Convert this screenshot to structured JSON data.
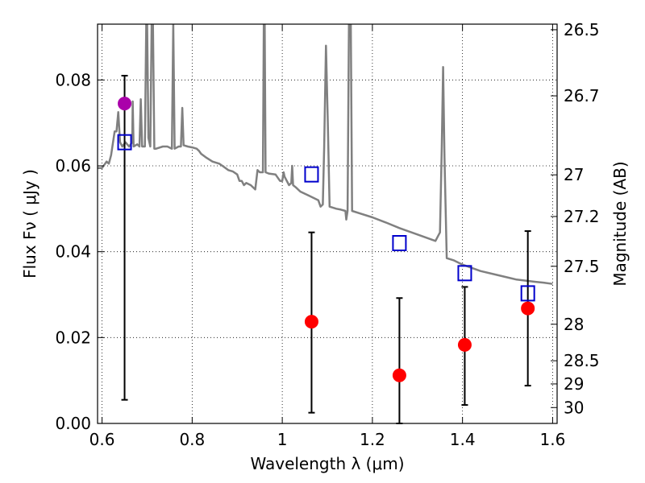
{
  "chart_data": {
    "type": "scatter",
    "xlabel": "Wavelength  λ (μm)",
    "ylabel": "Flux  Fν  ( μJy )",
    "ylabel_right": "Magnitude (AB)",
    "xlim": [
      0.59,
      1.61
    ],
    "ylim": [
      0.0,
      0.093
    ],
    "grid": true,
    "x_ticks": [
      0.6,
      0.8,
      1.0,
      1.2,
      1.4,
      1.6
    ],
    "x_tick_labels": [
      "0.6",
      "0.8",
      "1",
      "1.2",
      "1.4",
      "1.6"
    ],
    "y_ticks": [
      0.0,
      0.02,
      0.04,
      0.06,
      0.08
    ],
    "y_tick_labels": [
      "0.00",
      "0.02",
      "0.04",
      "0.06",
      "0.08"
    ],
    "right_ticks": [
      {
        "label": "26.5",
        "flux": 0.0917
      },
      {
        "label": "26.7",
        "flux": 0.0763
      },
      {
        "label": "27",
        "flux": 0.0579
      },
      {
        "label": "27.2",
        "flux": 0.0482
      },
      {
        "label": "27.5",
        "flux": 0.0366
      },
      {
        "label": "28",
        "flux": 0.0231
      },
      {
        "label": "28.5",
        "flux": 0.0146
      },
      {
        "label": "29",
        "flux": 0.0092
      },
      {
        "label": "30",
        "flux": 0.0037
      }
    ],
    "colors": {
      "model": "#808080",
      "model_points": "#0000cc",
      "detection": "#aa00aa",
      "measured": "#ff0000",
      "errorbar": "#000000"
    },
    "series": [
      {
        "kind": "model_spectrum",
        "points": [
          [
            0.59,
            0.0595
          ],
          [
            0.6,
            0.0595
          ],
          [
            0.61,
            0.061
          ],
          [
            0.615,
            0.0605
          ],
          [
            0.62,
            0.0625
          ],
          [
            0.625,
            0.066
          ],
          [
            0.628,
            0.068
          ],
          [
            0.632,
            0.068
          ],
          [
            0.636,
            0.0725
          ],
          [
            0.64,
            0.0655
          ],
          [
            0.645,
            0.0645
          ],
          [
            0.652,
            0.0655
          ],
          [
            0.66,
            0.0645
          ],
          [
            0.667,
            0.0655
          ],
          [
            0.668,
            0.075
          ],
          [
            0.67,
            0.0645
          ],
          [
            0.678,
            0.065
          ],
          [
            0.683,
            0.0645
          ],
          [
            0.686,
            0.0755
          ],
          [
            0.689,
            0.0645
          ],
          [
            0.695,
            0.0645
          ],
          [
            0.698,
            0.093
          ],
          [
            0.7,
            0.093
          ],
          [
            0.703,
            0.0665
          ],
          [
            0.707,
            0.0645
          ],
          [
            0.71,
            0.093
          ],
          [
            0.713,
            0.093
          ],
          [
            0.716,
            0.064
          ],
          [
            0.72,
            0.064
          ],
          [
            0.735,
            0.0645
          ],
          [
            0.745,
            0.0645
          ],
          [
            0.755,
            0.064
          ],
          [
            0.758,
            0.093
          ],
          [
            0.761,
            0.064
          ],
          [
            0.77,
            0.0645
          ],
          [
            0.775,
            0.0645
          ],
          [
            0.778,
            0.0735
          ],
          [
            0.781,
            0.0648
          ],
          [
            0.79,
            0.0645
          ],
          [
            0.8,
            0.0643
          ],
          [
            0.81,
            0.064
          ],
          [
            0.815,
            0.0635
          ],
          [
            0.82,
            0.0628
          ],
          [
            0.83,
            0.062
          ],
          [
            0.845,
            0.061
          ],
          [
            0.86,
            0.0605
          ],
          [
            0.87,
            0.0598
          ],
          [
            0.88,
            0.059
          ],
          [
            0.89,
            0.0587
          ],
          [
            0.9,
            0.058
          ],
          [
            0.905,
            0.0565
          ],
          [
            0.91,
            0.0565
          ],
          [
            0.915,
            0.0555
          ],
          [
            0.92,
            0.056
          ],
          [
            0.93,
            0.0555
          ],
          [
            0.94,
            0.0545
          ],
          [
            0.945,
            0.059
          ],
          [
            0.95,
            0.0585
          ],
          [
            0.957,
            0.0585
          ],
          [
            0.959,
            0.093
          ],
          [
            0.961,
            0.093
          ],
          [
            0.963,
            0.0585
          ],
          [
            0.97,
            0.0582
          ],
          [
            0.985,
            0.058
          ],
          [
            0.995,
            0.0565
          ],
          [
            1.0,
            0.0565
          ],
          [
            1.003,
            0.0585
          ],
          [
            1.005,
            0.0575
          ],
          [
            1.01,
            0.0565
          ],
          [
            1.015,
            0.0555
          ],
          [
            1.02,
            0.056
          ],
          [
            1.022,
            0.06
          ],
          [
            1.024,
            0.0555
          ],
          [
            1.03,
            0.055
          ],
          [
            1.04,
            0.054
          ],
          [
            1.06,
            0.053
          ],
          [
            1.08,
            0.052
          ],
          [
            1.085,
            0.0505
          ],
          [
            1.09,
            0.051
          ],
          [
            1.093,
            0.0645
          ],
          [
            1.097,
            0.088
          ],
          [
            1.101,
            0.07
          ],
          [
            1.105,
            0.0505
          ],
          [
            1.12,
            0.05
          ],
          [
            1.13,
            0.0498
          ],
          [
            1.14,
            0.0495
          ],
          [
            1.142,
            0.0475
          ],
          [
            1.145,
            0.0495
          ],
          [
            1.148,
            0.093
          ],
          [
            1.152,
            0.093
          ],
          [
            1.155,
            0.0495
          ],
          [
            1.17,
            0.049
          ],
          [
            1.2,
            0.048
          ],
          [
            1.23,
            0.0468
          ],
          [
            1.26,
            0.0455
          ],
          [
            1.3,
            0.044
          ],
          [
            1.34,
            0.0425
          ],
          [
            1.35,
            0.0445
          ],
          [
            1.354,
            0.064
          ],
          [
            1.357,
            0.083
          ],
          [
            1.36,
            0.062
          ],
          [
            1.365,
            0.0385
          ],
          [
            1.38,
            0.038
          ],
          [
            1.4,
            0.037
          ],
          [
            1.44,
            0.0355
          ],
          [
            1.48,
            0.0345
          ],
          [
            1.52,
            0.0335
          ],
          [
            1.56,
            0.033
          ],
          [
            1.58,
            0.0328
          ],
          [
            1.6,
            0.0325
          ]
        ]
      },
      {
        "kind": "model_filter_points",
        "x": [
          0.65,
          1.065,
          1.26,
          1.405,
          1.545
        ],
        "y": [
          0.0655,
          0.058,
          0.042,
          0.035,
          0.0303
        ]
      },
      {
        "kind": "detection",
        "x": [
          0.65
        ],
        "y": [
          0.0745
        ],
        "err_low": [
          0.0055
        ],
        "err_high": [
          0.081
        ]
      },
      {
        "kind": "measured",
        "x": [
          1.065,
          1.26,
          1.405,
          1.545
        ],
        "y": [
          0.0237,
          0.0112,
          0.0183,
          0.0268
        ],
        "err_low": [
          0.0025,
          0.0,
          0.0043,
          0.0088
        ],
        "err_high": [
          0.0445,
          0.0292,
          0.0318,
          0.0448
        ]
      }
    ]
  }
}
